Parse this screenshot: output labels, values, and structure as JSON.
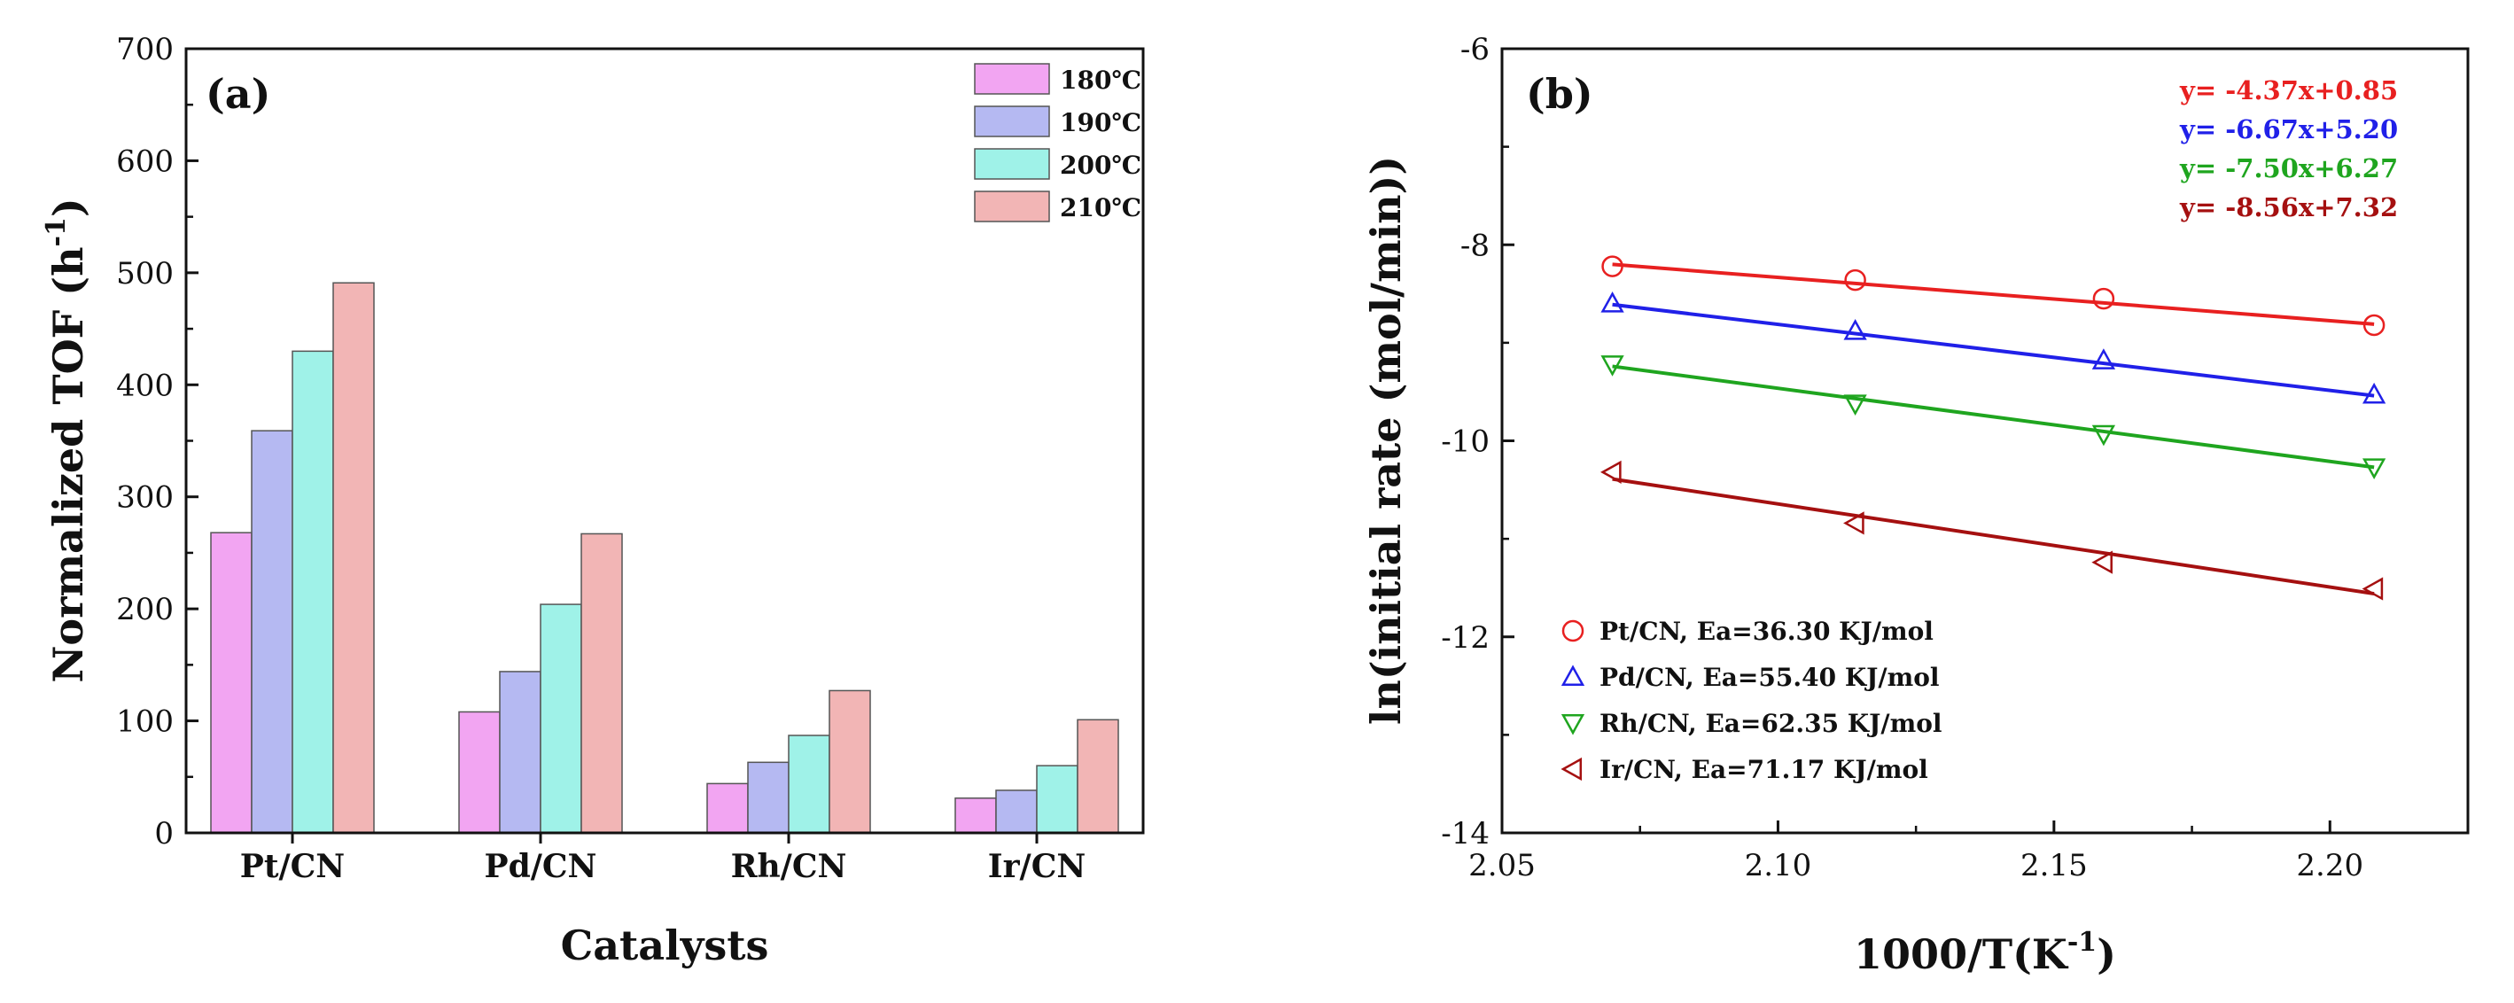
{
  "chart_data": [
    {
      "type": "bar",
      "panel_label": "(a)",
      "title": "",
      "xlabel": "Catalysts",
      "ylabel": "Normalized TOF (h",
      "ylabel_sup": "-1",
      "ylabel_end": ")",
      "ylim": [
        0,
        700
      ],
      "yticks": [
        0,
        100,
        200,
        300,
        400,
        500,
        600,
        700
      ],
      "categories": [
        "Pt/CN",
        "Pd/CN",
        "Rh/CN",
        "Ir/CN"
      ],
      "legend_position": "top-right",
      "series": [
        {
          "name": "180℃",
          "color": "#f2a5f2",
          "values": [
            268,
            108,
            44,
            31
          ]
        },
        {
          "name": "190℃",
          "color": "#b5b9f2",
          "values": [
            359,
            144,
            63,
            38
          ]
        },
        {
          "name": "200℃",
          "color": "#9ff2e8",
          "values": [
            430,
            204,
            87,
            60
          ]
        },
        {
          "name": "210℃",
          "color": "#f2b5b5",
          "values": [
            491,
            267,
            127,
            101
          ]
        }
      ]
    },
    {
      "type": "scatter",
      "panel_label": "(b)",
      "title": "",
      "xlabel": "1000/T(K",
      "xlabel_sup": "-1",
      "xlabel_end": ")",
      "ylabel": "ln(initial rate (mol/min))",
      "xlim": [
        2.05,
        2.225
      ],
      "ylim": [
        -14,
        -6
      ],
      "xticks": [
        2.05,
        2.1,
        2.15,
        2.2
      ],
      "xtick_labels": [
        "2.05",
        "2.10",
        "2.15",
        "2.20"
      ],
      "yticks": [
        -14,
        -12,
        -10,
        -8,
        -6
      ],
      "x": [
        2.07,
        2.114,
        2.159,
        2.208
      ],
      "legend_position": "bottom-left",
      "series": [
        {
          "name": "Pt/CN, Ea=36.30 KJ/mol",
          "color": "#e82020",
          "marker": "circle",
          "values": [
            -8.22,
            -8.36,
            -8.55,
            -8.82
          ],
          "fit_start": -8.2,
          "fit_end": -8.81,
          "equation": "y= -4.37x+0.85"
        },
        {
          "name": "Pd/CN, Ea=55.40 KJ/mol",
          "color": "#2020e8",
          "marker": "triangle-up",
          "values": [
            -8.6,
            -8.88,
            -9.18,
            -9.53
          ],
          "fit_start": -8.61,
          "fit_end": -9.54,
          "equation": "y= -6.67x+5.20"
        },
        {
          "name": "Rh/CN, Ea=62.35 KJ/mol",
          "color": "#1fa51f",
          "marker": "triangle-down",
          "values": [
            -9.22,
            -9.62,
            -9.93,
            -10.27
          ],
          "fit_start": -9.24,
          "fit_end": -10.27,
          "equation": "y= -7.50x+6.27"
        },
        {
          "name": "Ir/CN, Ea=71.17 KJ/mol",
          "color": "#a51010",
          "marker": "triangle-left",
          "values": [
            -10.32,
            -10.84,
            -11.24,
            -11.51
          ],
          "fit_start": -10.39,
          "fit_end": -11.56,
          "equation": "y= -8.56x+7.32"
        }
      ]
    }
  ]
}
